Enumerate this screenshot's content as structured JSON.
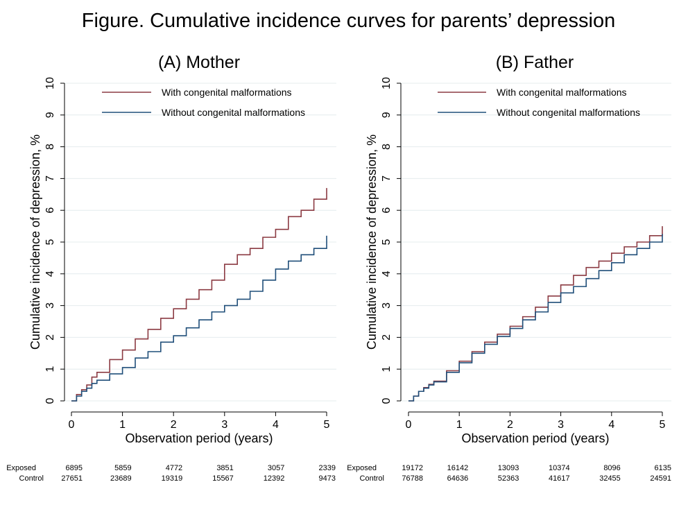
{
  "figure": {
    "title": "Figure. Cumulative incidence curves for parents’ depression"
  },
  "colors": {
    "with": "#8b3a42",
    "without": "#1f4e79",
    "grid": "#e4ecee"
  },
  "chart_data": [
    {
      "type": "line",
      "title": "(A) Mother",
      "xlabel": "Observation period (years)",
      "ylabel": "Cumulative incidence of depression, %",
      "xlim": [
        0,
        5
      ],
      "ylim": [
        0,
        10
      ],
      "xticks": [
        "0",
        "1",
        "2",
        "3",
        "4",
        "5"
      ],
      "yticks": [
        "0",
        "1",
        "2",
        "3",
        "4",
        "5",
        "6",
        "7",
        "8",
        "9",
        "10"
      ],
      "grid": "horizontal",
      "legend": "top-right",
      "series": [
        {
          "name": "With congenital malformations",
          "x": [
            0,
            0.1,
            0.2,
            0.3,
            0.4,
            0.5,
            0.75,
            1.0,
            1.25,
            1.5,
            1.75,
            2.0,
            2.25,
            2.5,
            2.75,
            3.0,
            3.25,
            3.5,
            3.75,
            4.0,
            4.25,
            4.5,
            4.75,
            5.0
          ],
          "y": [
            0,
            0.2,
            0.35,
            0.5,
            0.75,
            0.9,
            1.3,
            1.6,
            1.95,
            2.25,
            2.6,
            2.9,
            3.2,
            3.5,
            3.8,
            4.3,
            4.6,
            4.8,
            5.15,
            5.4,
            5.8,
            6.0,
            6.35,
            6.7
          ]
        },
        {
          "name": "Without congenital malformations",
          "x": [
            0,
            0.1,
            0.2,
            0.3,
            0.4,
            0.5,
            0.75,
            1.0,
            1.25,
            1.5,
            1.75,
            2.0,
            2.25,
            2.5,
            2.75,
            3.0,
            3.25,
            3.5,
            3.75,
            4.0,
            4.25,
            4.5,
            4.75,
            5.0
          ],
          "y": [
            0,
            0.15,
            0.3,
            0.4,
            0.55,
            0.65,
            0.85,
            1.05,
            1.35,
            1.55,
            1.85,
            2.05,
            2.3,
            2.55,
            2.8,
            3.0,
            3.2,
            3.45,
            3.8,
            4.15,
            4.4,
            4.6,
            4.8,
            5.2
          ]
        }
      ],
      "risk_table": {
        "rows": [
          {
            "label": "Exposed",
            "values": [
              "6895",
              "5859",
              "4772",
              "3851",
              "3057",
              "2339"
            ]
          },
          {
            "label": "Control",
            "values": [
              "27651",
              "23689",
              "19319",
              "15567",
              "12392",
              "9473"
            ]
          }
        ]
      }
    },
    {
      "type": "line",
      "title": "(B) Father",
      "xlabel": "Observation period (years)",
      "ylabel": "Cumulative incidence of depression, %",
      "xlim": [
        0,
        5
      ],
      "ylim": [
        0,
        10
      ],
      "xticks": [
        "0",
        "1",
        "2",
        "3",
        "4",
        "5"
      ],
      "yticks": [
        "0",
        "1",
        "2",
        "3",
        "4",
        "5",
        "6",
        "7",
        "8",
        "9",
        "10"
      ],
      "grid": "horizontal",
      "legend": "top-right",
      "series": [
        {
          "name": "With congenital malformations",
          "x": [
            0,
            0.1,
            0.2,
            0.3,
            0.4,
            0.5,
            0.75,
            1.0,
            1.25,
            1.5,
            1.75,
            2.0,
            2.25,
            2.5,
            2.75,
            3.0,
            3.25,
            3.5,
            3.75,
            4.0,
            4.25,
            4.5,
            4.75,
            5.0
          ],
          "y": [
            0,
            0.15,
            0.3,
            0.42,
            0.52,
            0.62,
            0.95,
            1.25,
            1.55,
            1.85,
            2.1,
            2.35,
            2.65,
            2.95,
            3.3,
            3.65,
            3.95,
            4.2,
            4.4,
            4.65,
            4.85,
            5.0,
            5.2,
            5.5
          ]
        },
        {
          "name": "Without congenital malformations",
          "x": [
            0,
            0.1,
            0.2,
            0.3,
            0.4,
            0.5,
            0.75,
            1.0,
            1.25,
            1.5,
            1.75,
            2.0,
            2.25,
            2.5,
            2.75,
            3.0,
            3.25,
            3.5,
            3.75,
            4.0,
            4.25,
            4.5,
            4.75,
            5.0
          ],
          "y": [
            0,
            0.15,
            0.3,
            0.4,
            0.5,
            0.6,
            0.9,
            1.2,
            1.5,
            1.78,
            2.03,
            2.28,
            2.55,
            2.8,
            3.1,
            3.4,
            3.6,
            3.85,
            4.1,
            4.35,
            4.6,
            4.8,
            5.0,
            5.25
          ]
        }
      ],
      "risk_table": {
        "rows": [
          {
            "label": "Exposed",
            "values": [
              "19172",
              "16142",
              "13093",
              "10374",
              "8096",
              "6135"
            ]
          },
          {
            "label": "Control",
            "values": [
              "76788",
              "64636",
              "52363",
              "41617",
              "32455",
              "24591"
            ]
          }
        ]
      }
    }
  ]
}
